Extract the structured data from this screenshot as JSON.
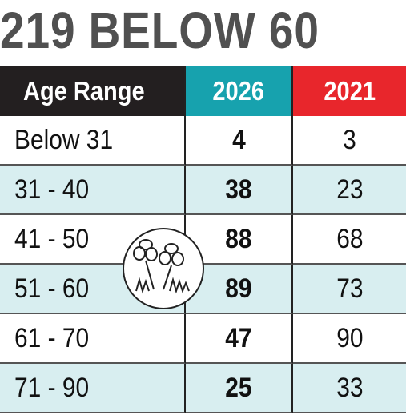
{
  "header": {
    "title": "219 BELOW 60"
  },
  "table": {
    "columns": [
      "Age Range",
      "2026",
      "2021"
    ],
    "rows": [
      [
        "Below 31",
        4,
        3
      ],
      [
        "31 - 40",
        38,
        23
      ],
      [
        "41 - 50",
        88,
        68
      ],
      [
        "51 - 60",
        89,
        73
      ],
      [
        "61 - 70",
        47,
        90
      ],
      [
        "71 - 90",
        25,
        33
      ]
    ]
  }
}
